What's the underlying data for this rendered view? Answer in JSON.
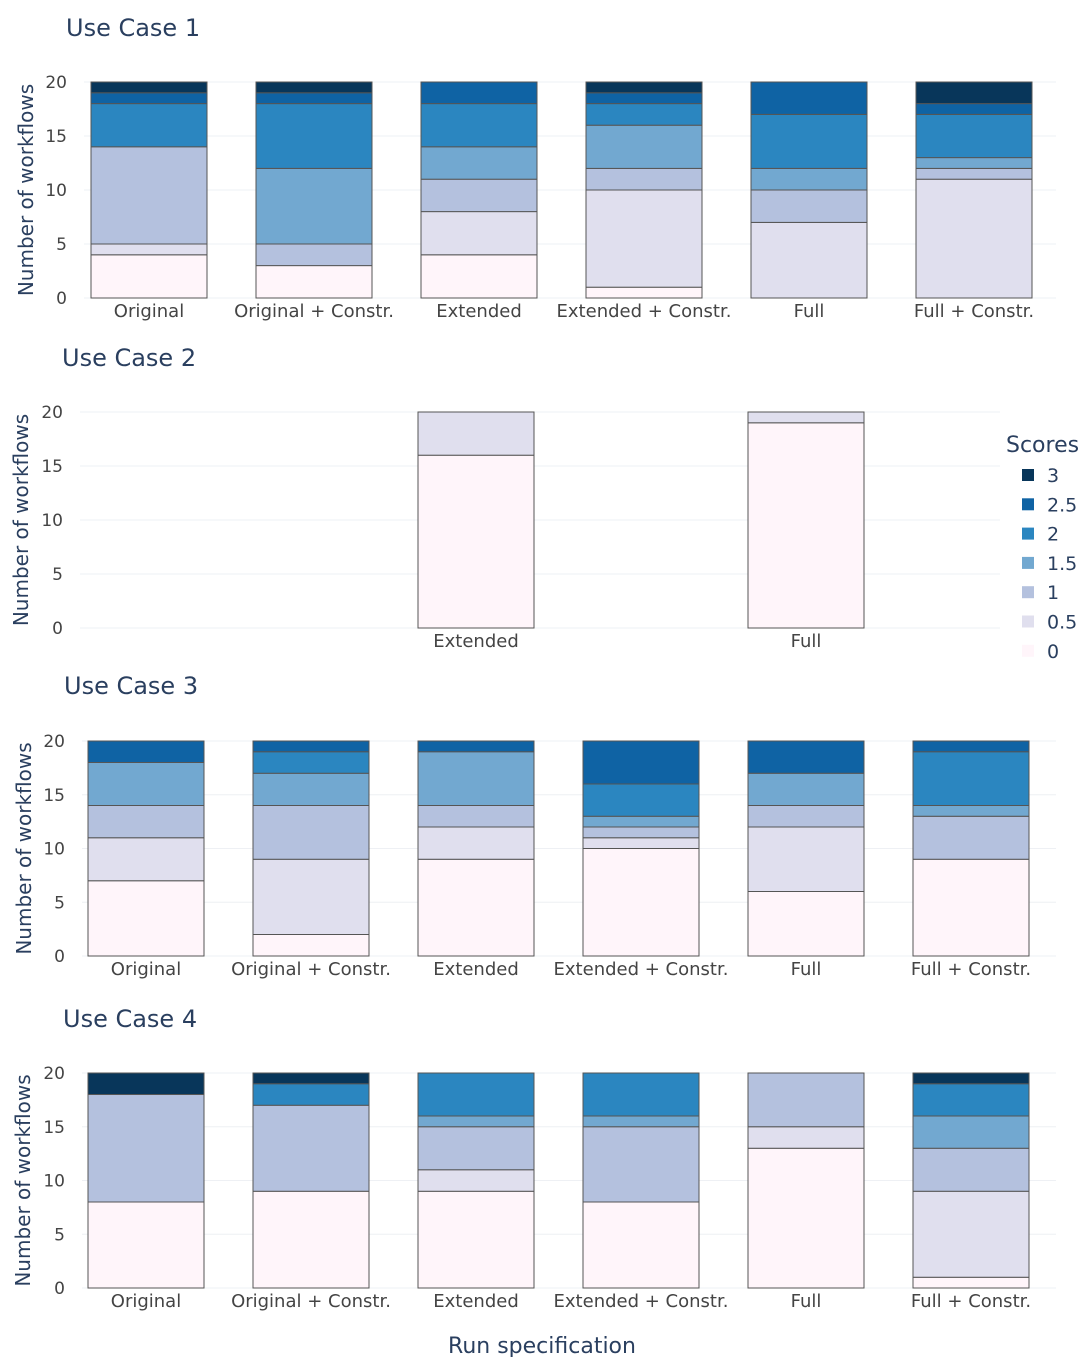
{
  "chart_data": {
    "type": "bar",
    "stacked": true,
    "xlabel": "Run specification",
    "ylabel": "Number of workflows",
    "ylim": [
      0,
      20
    ],
    "yticks": [
      0,
      5,
      10,
      15,
      20
    ],
    "legend": {
      "title": "Scores",
      "placement": "right",
      "entries": [
        "3",
        "2.5",
        "2",
        "1.5",
        "1",
        "0.5",
        "0"
      ]
    },
    "score_colors": {
      "0": "#fff5fa",
      "0.5": "#e0dfee",
      "1": "#b4c1de",
      "1.5": "#72a8d0",
      "2": "#2b86c0",
      "2.5": "#0f63a4",
      "3": "#08365a"
    },
    "stack_order": [
      "0",
      "0.5",
      "1",
      "1.5",
      "2",
      "2.5",
      "3"
    ],
    "panels": [
      {
        "title": "Use Case 1",
        "categories": [
          "Original",
          "Original + Constr.",
          "Extended",
          "Extended + Constr.",
          "Full",
          "Full + Constr."
        ],
        "series": [
          {
            "name": "0",
            "values": [
              4,
              3,
              4,
              1,
              0,
              0
            ]
          },
          {
            "name": "0.5",
            "values": [
              1,
              0,
              4,
              9,
              7,
              11
            ]
          },
          {
            "name": "1",
            "values": [
              9,
              2,
              3,
              2,
              3,
              1
            ]
          },
          {
            "name": "1.5",
            "values": [
              0,
              7,
              3,
              4,
              2,
              1
            ]
          },
          {
            "name": "2",
            "values": [
              4,
              6,
              4,
              2,
              5,
              4
            ]
          },
          {
            "name": "2.5",
            "values": [
              1,
              1,
              2,
              1,
              3,
              1
            ]
          },
          {
            "name": "3",
            "values": [
              1,
              1,
              0,
              1,
              0,
              2
            ]
          }
        ]
      },
      {
        "title": "Use Case 2",
        "categories": [
          "Extended",
          "Full"
        ],
        "slots": [
          2,
          4
        ],
        "series": [
          {
            "name": "0",
            "values": [
              16,
              19
            ]
          },
          {
            "name": "0.5",
            "values": [
              4,
              1
            ]
          }
        ]
      },
      {
        "title": "Use Case 3",
        "categories": [
          "Original",
          "Original + Constr.",
          "Extended",
          "Extended + Constr.",
          "Full",
          "Full + Constr."
        ],
        "series": [
          {
            "name": "0",
            "values": [
              7,
              2,
              9,
              10,
              6,
              9
            ]
          },
          {
            "name": "0.5",
            "values": [
              4,
              7,
              3,
              1,
              6,
              0
            ]
          },
          {
            "name": "1",
            "values": [
              3,
              5,
              2,
              1,
              2,
              4
            ]
          },
          {
            "name": "1.5",
            "values": [
              4,
              3,
              5,
              1,
              3,
              1
            ]
          },
          {
            "name": "2",
            "values": [
              0,
              2,
              0,
              3,
              0,
              5
            ]
          },
          {
            "name": "2.5",
            "values": [
              2,
              1,
              1,
              4,
              3,
              1
            ]
          },
          {
            "name": "3",
            "values": [
              0,
              0,
              0,
              0,
              0,
              0
            ]
          }
        ]
      },
      {
        "title": "Use Case 4",
        "categories": [
          "Original",
          "Original + Constr.",
          "Extended",
          "Extended + Constr.",
          "Full",
          "Full + Constr."
        ],
        "series": [
          {
            "name": "0",
            "values": [
              8,
              9,
              9,
              8,
              13,
              1
            ]
          },
          {
            "name": "0.5",
            "values": [
              0,
              0,
              2,
              0,
              2,
              8
            ]
          },
          {
            "name": "1",
            "values": [
              10,
              8,
              4,
              7,
              5,
              4
            ]
          },
          {
            "name": "1.5",
            "values": [
              0,
              0,
              1,
              1,
              0,
              3
            ]
          },
          {
            "name": "2",
            "values": [
              0,
              2,
              4,
              4,
              0,
              3
            ]
          },
          {
            "name": "2.5",
            "values": [
              0,
              0,
              0,
              0,
              0,
              0
            ]
          },
          {
            "name": "3",
            "values": [
              2,
              1,
              0,
              0,
              0,
              1
            ]
          }
        ]
      }
    ]
  }
}
